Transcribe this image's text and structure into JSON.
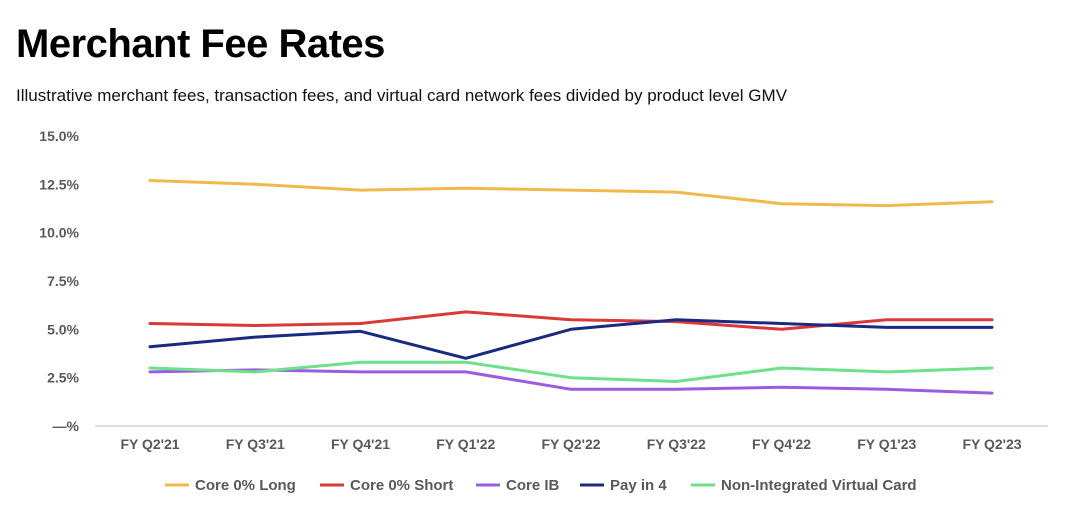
{
  "chart_data": {
    "type": "line",
    "title": "Merchant Fee Rates",
    "subtitle": "Illustrative merchant fees, transaction fees, and virtual card network fees divided by product level GMV",
    "categories": [
      "FY Q2'21",
      "FY Q3'21",
      "FY Q4'21",
      "FY Q1'22",
      "FY Q2'22",
      "FY Q3'22",
      "FY Q4'22",
      "FY Q1'23",
      "FY Q2'23"
    ],
    "yticks": [
      {
        "value": 0,
        "label": "—%"
      },
      {
        "value": 2.5,
        "label": "2.5%"
      },
      {
        "value": 5.0,
        "label": "5.0%"
      },
      {
        "value": 7.5,
        "label": "7.5%"
      },
      {
        "value": 10.0,
        "label": "10.0%"
      },
      {
        "value": 12.5,
        "label": "12.5%"
      },
      {
        "value": 15.0,
        "label": "15.0%"
      }
    ],
    "ylim": [
      0,
      15
    ],
    "grid": false,
    "legend_position": "bottom",
    "series": [
      {
        "name": "Core 0% Long",
        "color": "#F2B94A",
        "values": [
          12.7,
          12.5,
          12.2,
          12.3,
          12.2,
          12.1,
          11.5,
          11.4,
          11.6
        ]
      },
      {
        "name": "Core 0% Short",
        "color": "#DB3838",
        "values": [
          5.3,
          5.2,
          5.3,
          5.9,
          5.5,
          5.4,
          5.0,
          5.5,
          5.5
        ]
      },
      {
        "name": "Core IB",
        "color": "#9B5DE0",
        "values": [
          2.8,
          2.9,
          2.8,
          2.8,
          1.9,
          1.9,
          2.0,
          1.9,
          1.7
        ]
      },
      {
        "name": "Pay in 4",
        "color": "#1A2A80",
        "values": [
          4.1,
          4.6,
          4.9,
          3.5,
          5.0,
          5.5,
          5.3,
          5.1,
          5.1
        ]
      },
      {
        "name": "Non-Integrated Virtual Card",
        "color": "#6EE08A",
        "values": [
          3.0,
          2.8,
          3.3,
          3.3,
          2.5,
          2.3,
          3.0,
          2.8,
          3.0
        ]
      }
    ]
  }
}
